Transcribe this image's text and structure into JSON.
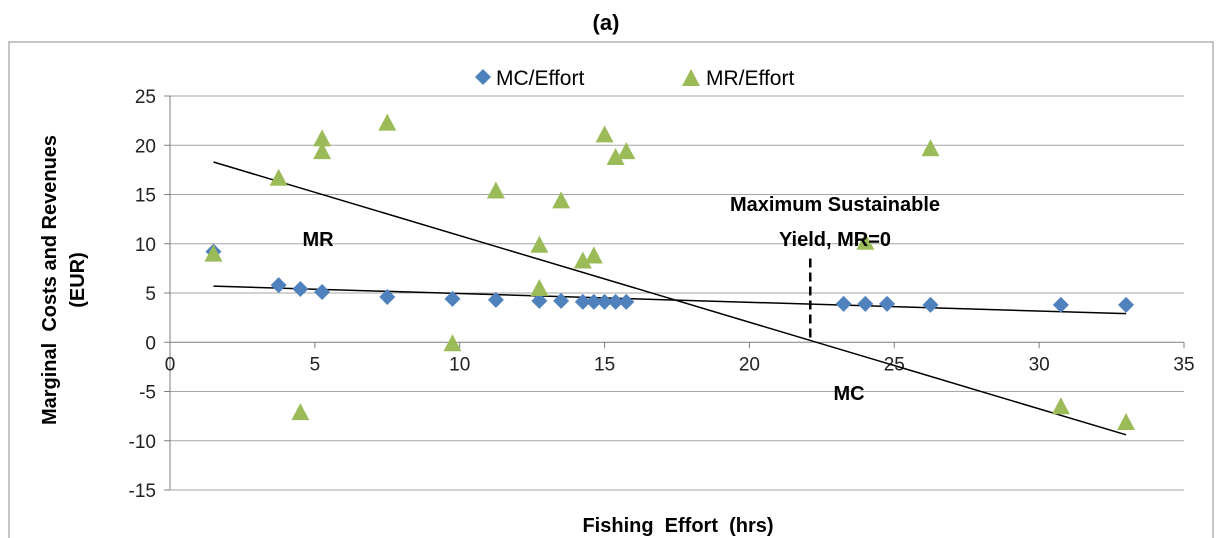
{
  "chart_data": {
    "type": "scatter",
    "panel_label": "(a)",
    "xlabel": "Fishing  Effort  (hrs)",
    "ylabel_lines": [
      "Marginal  Costs and Revenues",
      "(EUR)"
    ],
    "xlim": [
      0,
      35
    ],
    "ylim": [
      -15,
      25
    ],
    "xticks": [
      0,
      5,
      10,
      15,
      20,
      25,
      30,
      35
    ],
    "yticks": [
      25,
      20,
      15,
      10,
      5,
      0,
      -5,
      -10,
      -15
    ],
    "grid": "horizontal",
    "legend_position": "top",
    "series": [
      {
        "name": "MC/Effort",
        "marker": "diamond",
        "color": "#4F81BD",
        "points": [
          [
            1.5,
            9.2
          ],
          [
            3.75,
            5.8
          ],
          [
            4.5,
            5.4
          ],
          [
            5.25,
            5.1
          ],
          [
            7.5,
            4.6
          ],
          [
            9.75,
            4.4
          ],
          [
            11.25,
            4.3
          ],
          [
            12.75,
            4.2
          ],
          [
            13.5,
            4.2
          ],
          [
            14.25,
            4.1
          ],
          [
            14.63,
            4.1
          ],
          [
            15.0,
            4.1
          ],
          [
            15.38,
            4.1
          ],
          [
            15.75,
            4.1
          ],
          [
            23.25,
            3.9
          ],
          [
            24.0,
            3.9
          ],
          [
            24.75,
            3.9
          ],
          [
            26.25,
            3.8
          ],
          [
            30.75,
            3.8
          ],
          [
            33.0,
            3.8
          ]
        ]
      },
      {
        "name": "MR/Effort",
        "marker": "triangle",
        "color": "#9BBB59",
        "points": [
          [
            1.5,
            8.9
          ],
          [
            3.75,
            16.6
          ],
          [
            4.5,
            -7.2
          ],
          [
            5.25,
            20.6
          ],
          [
            5.25,
            19.3
          ],
          [
            7.5,
            22.2
          ],
          [
            9.75,
            -0.2
          ],
          [
            11.25,
            15.3
          ],
          [
            12.75,
            9.8
          ],
          [
            12.75,
            5.4
          ],
          [
            13.5,
            14.3
          ],
          [
            14.25,
            8.2
          ],
          [
            14.63,
            8.7
          ],
          [
            15.0,
            21.0
          ],
          [
            15.38,
            18.7
          ],
          [
            15.75,
            19.3
          ],
          [
            24.0,
            10.1
          ],
          [
            26.25,
            19.6
          ],
          [
            30.75,
            -6.6
          ],
          [
            33.0,
            -8.2
          ]
        ]
      }
    ],
    "trendlines": [
      {
        "name": "MR",
        "from": [
          1.5,
          18.3
        ],
        "to": [
          33.0,
          -9.4
        ]
      },
      {
        "name": "MC",
        "from": [
          1.5,
          5.7
        ],
        "to": [
          33.0,
          2.9
        ]
      }
    ],
    "msy_marker": {
      "x": 22.1,
      "y_from": 0,
      "y_to": 8.5
    },
    "annotations": {
      "mr_label": "MR",
      "mc_label": "MC",
      "msy_line1": "Maximum Sustainable",
      "msy_line2": "Yield, MR=0"
    },
    "colors": {
      "mc": "#4F81BD",
      "mr": "#9BBB59",
      "grid": "#A6A6A6",
      "line": "#000000"
    }
  }
}
